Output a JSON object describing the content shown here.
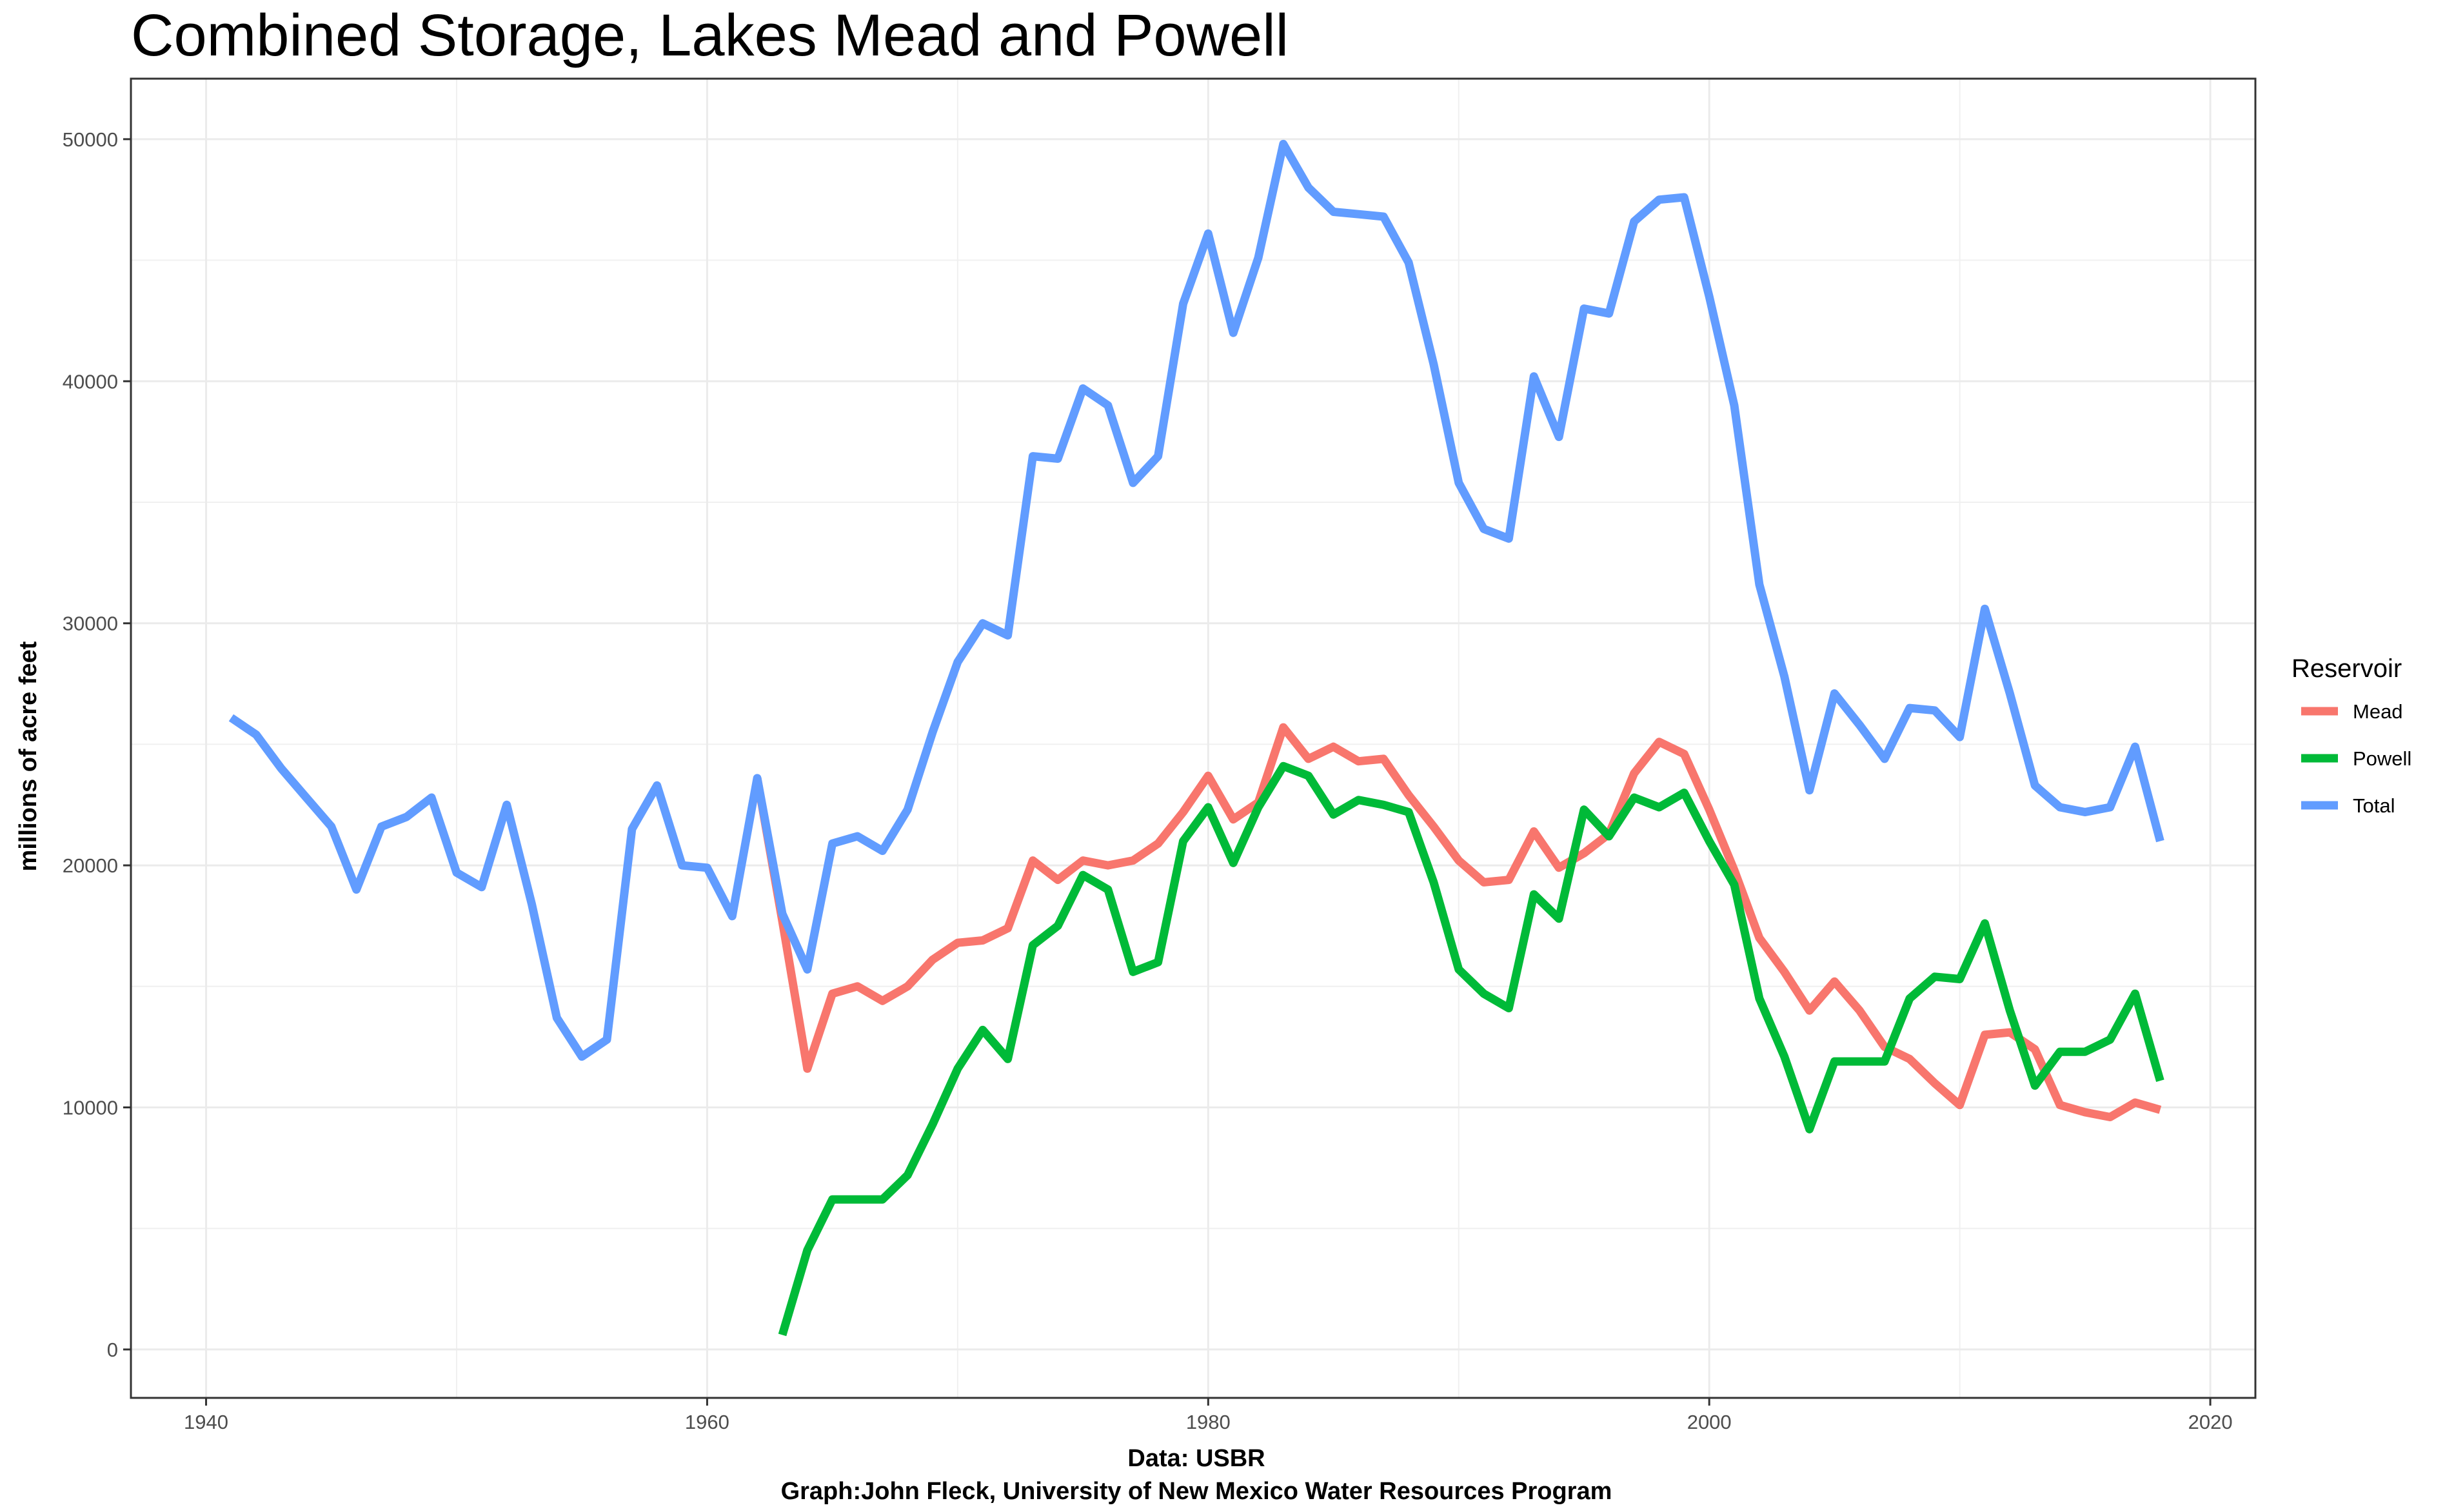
{
  "chart_data": {
    "type": "line",
    "title": "Combined Storage, Lakes Mead and Powell",
    "xlabel": "Data: USBR",
    "caption": "Graph:John Fleck, University of New Mexico Water Resources Program",
    "ylabel": "millions of acre feet",
    "xlim": [
      1937,
      2021.8
    ],
    "ylim": [
      -2000,
      52500
    ],
    "x_ticks": [
      "1940",
      "1960",
      "1980",
      "2000",
      "2020"
    ],
    "y_ticks": [
      "0",
      "10000",
      "20000",
      "30000",
      "40000",
      "50000"
    ],
    "grid": true,
    "legend": {
      "title": "Reservoir",
      "position": "right"
    },
    "series": [
      {
        "name": "Mead",
        "color": "#F8766D",
        "x": [
          1962,
          1963,
          1964,
          1965,
          1966,
          1967,
          1968,
          1969,
          1970,
          1971,
          1972,
          1973,
          1974,
          1975,
          1976,
          1977,
          1978,
          1979,
          1980,
          1981,
          1982,
          1983,
          1984,
          1985,
          1986,
          1987,
          1988,
          1989,
          1990,
          1991,
          1992,
          1993,
          1994,
          1995,
          1996,
          1997,
          1998,
          1999,
          2000,
          2001,
          2002,
          2003,
          2004,
          2005,
          2006,
          2007,
          2008,
          2009,
          2010,
          2011,
          2012,
          2013,
          2014,
          2015,
          2016,
          2017,
          2018
        ],
        "values": [
          23600,
          17700,
          11600,
          14700,
          15000,
          14400,
          15000,
          16100,
          16800,
          16900,
          17400,
          20200,
          19400,
          20200,
          20000,
          20200,
          20900,
          22200,
          23700,
          21900,
          22600,
          25700,
          24400,
          24900,
          24300,
          24400,
          22900,
          21600,
          20200,
          19300,
          19400,
          21400,
          19900,
          20500,
          21300,
          23800,
          25100,
          24600,
          22300,
          19800,
          17000,
          15600,
          14000,
          15200,
          14000,
          12500,
          12000,
          11000,
          10100,
          13000,
          13100,
          12400,
          10100,
          9800,
          9600,
          10200,
          9900
        ]
      },
      {
        "name": "Powell",
        "color": "#00BA38",
        "x": [
          1963,
          1964,
          1965,
          1966,
          1967,
          1968,
          1969,
          1970,
          1971,
          1972,
          1973,
          1974,
          1975,
          1976,
          1977,
          1978,
          1979,
          1980,
          1981,
          1982,
          1983,
          1984,
          1985,
          1986,
          1987,
          1988,
          1989,
          1990,
          1991,
          1992,
          1993,
          1994,
          1995,
          1996,
          1997,
          1998,
          1999,
          2000,
          2001,
          2002,
          2003,
          2004,
          2005,
          2006,
          2007,
          2008,
          2009,
          2010,
          2011,
          2012,
          2013,
          2014,
          2015,
          2016,
          2017,
          2018
        ],
        "values": [
          600,
          4100,
          6200,
          6200,
          6200,
          7200,
          9300,
          11600,
          13200,
          12000,
          16700,
          17500,
          19600,
          19000,
          15600,
          16000,
          21000,
          22400,
          20100,
          22400,
          24100,
          23700,
          22100,
          22700,
          22500,
          22200,
          19300,
          15700,
          14700,
          14100,
          18800,
          17800,
          22300,
          21200,
          22800,
          22400,
          23000,
          21000,
          19200,
          14500,
          12100,
          9100,
          11900,
          11900,
          11900,
          14500,
          15400,
          15300,
          17600,
          14000,
          10900,
          12300,
          12300,
          12800,
          14700,
          11100
        ]
      },
      {
        "name": "Total",
        "color": "#619CFF",
        "x": [
          1941,
          1942,
          1943,
          1944,
          1945,
          1946,
          1947,
          1948,
          1949,
          1950,
          1951,
          1952,
          1953,
          1954,
          1955,
          1956,
          1957,
          1958,
          1959,
          1960,
          1961,
          1962,
          1963,
          1964,
          1965,
          1966,
          1967,
          1968,
          1969,
          1970,
          1971,
          1972,
          1973,
          1974,
          1975,
          1976,
          1977,
          1978,
          1979,
          1980,
          1981,
          1982,
          1983,
          1984,
          1985,
          1986,
          1987,
          1988,
          1989,
          1990,
          1991,
          1992,
          1993,
          1994,
          1995,
          1996,
          1997,
          1998,
          1999,
          2000,
          2001,
          2002,
          2003,
          2004,
          2005,
          2006,
          2007,
          2008,
          2009,
          2010,
          2011,
          2012,
          2013,
          2014,
          2015,
          2016,
          2017,
          2018
        ],
        "values": [
          26100,
          25400,
          24000,
          22800,
          21600,
          19000,
          21600,
          22000,
          22800,
          19700,
          19100,
          22500,
          18400,
          13700,
          12100,
          12800,
          21500,
          23300,
          20000,
          19900,
          17900,
          23600,
          18000,
          15700,
          20900,
          21200,
          20600,
          22300,
          25500,
          28400,
          30000,
          29500,
          36900,
          36800,
          39700,
          39000,
          35800,
          36900,
          43200,
          46100,
          42000,
          45100,
          49800,
          48000,
          47000,
          46900,
          46800,
          44900,
          40700,
          35800,
          33900,
          33500,
          40200,
          37700,
          43000,
          42800,
          46600,
          47500,
          47600,
          43500,
          39000,
          31600,
          27800,
          23100,
          27100,
          25800,
          24400,
          26500,
          26400,
          25300,
          30600,
          27100,
          23300,
          22400,
          22200,
          22400,
          24900,
          21000
        ]
      }
    ]
  }
}
